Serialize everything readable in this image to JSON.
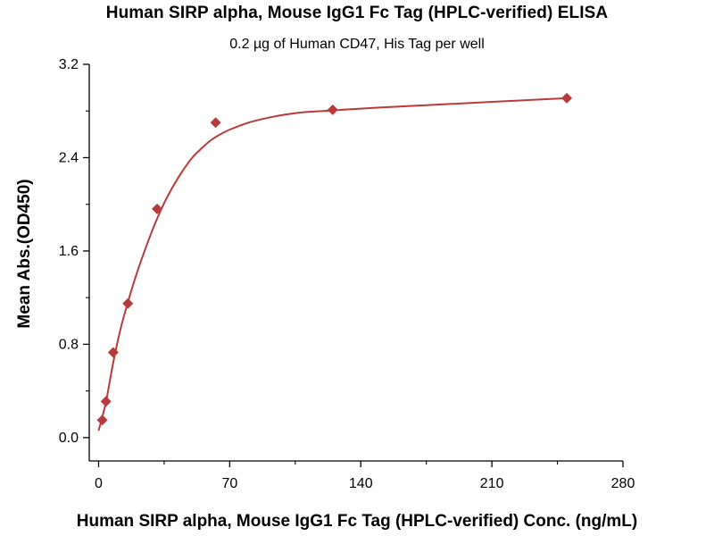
{
  "chart_data": {
    "type": "scatter",
    "title": "Human SIRP alpha, Mouse IgG1 Fc Tag (HPLC-verified) ELISA",
    "subtitle": "0.2 µg of Human CD47, His Tag per well",
    "xlabel": "Human SIRP alpha, Mouse IgG1 Fc Tag (HPLC-verified) Conc. (ng/mL)",
    "ylabel": "Mean Abs.(OD450)",
    "xlim": [
      -5,
      280
    ],
    "ylim": [
      -0.2,
      3.2
    ],
    "x_ticks": [
      0,
      70,
      140,
      210,
      280
    ],
    "y_ticks": [
      0.0,
      0.8,
      1.6,
      2.4,
      3.2
    ],
    "grid": false,
    "marker_color": "#b83a3a",
    "line_color": "#b83a3a",
    "series": [
      {
        "x": [
          1.95,
          3.9,
          7.8,
          15.6,
          31.25,
          62.5,
          125,
          250
        ],
        "y": [
          0.15,
          0.31,
          0.73,
          1.15,
          1.96,
          2.7,
          2.81,
          2.91
        ]
      }
    ],
    "fit_curve": {
      "x": [
        0,
        2,
        4,
        8,
        12,
        16,
        20,
        25,
        30,
        35,
        40,
        45,
        50,
        55,
        60,
        65,
        70,
        80,
        90,
        100,
        110,
        120,
        130,
        150,
        175,
        200,
        225,
        250
      ],
      "y": [
        0.06,
        0.18,
        0.31,
        0.66,
        0.95,
        1.18,
        1.39,
        1.62,
        1.83,
        2.01,
        2.16,
        2.29,
        2.4,
        2.48,
        2.55,
        2.6,
        2.64,
        2.7,
        2.74,
        2.77,
        2.79,
        2.8,
        2.81,
        2.83,
        2.85,
        2.87,
        2.89,
        2.91
      ]
    }
  }
}
